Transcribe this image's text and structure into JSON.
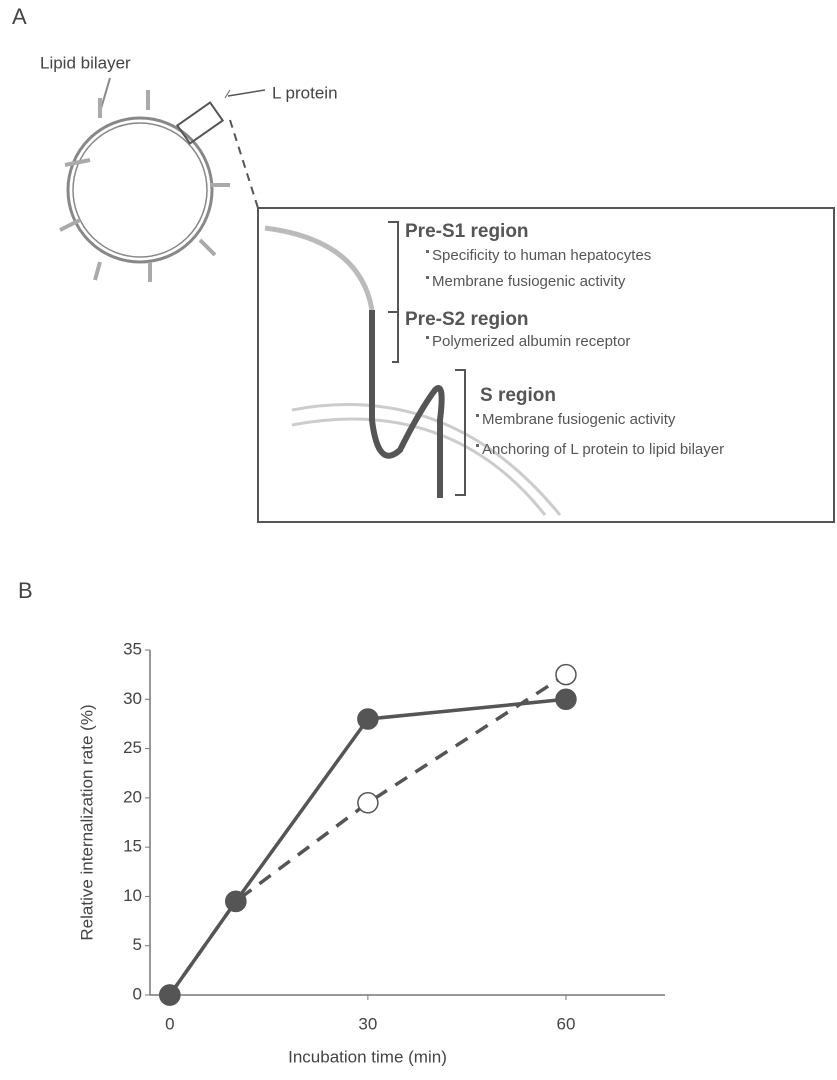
{
  "panel_a": {
    "label": "A",
    "lipid_label": "Lipid bilayer",
    "protein_label": "L protein",
    "regions": [
      {
        "name": "Pre-S1 region",
        "items": [
          "Specificity to human hepatocytes",
          "Membrane fusiogenic activity"
        ]
      },
      {
        "name": "Pre-S2 region",
        "items": [
          "Polymerized albumin receptor"
        ]
      },
      {
        "name": "S region",
        "items": [
          "Membrane fusiogenic activity",
          "Anchoring of L protein to lipid bilayer"
        ]
      }
    ]
  },
  "panel_b": {
    "label": "B"
  },
  "chart_data": {
    "type": "line",
    "x_label": "Incubation time (min)",
    "y_label": "Relative internalization rate (%)",
    "x": [
      0,
      10,
      30,
      60
    ],
    "series": [
      {
        "color": "#555555",
        "line_style": "solid",
        "marker": "filled",
        "values": [
          0,
          9.5,
          28,
          30
        ]
      },
      {
        "color": "#555555",
        "line_style": "dashed",
        "marker": "open",
        "values": [
          0,
          9.5,
          19.5,
          32.5
        ]
      }
    ],
    "xlim": [
      -3,
      75
    ],
    "xticks": [
      0,
      30,
      60
    ],
    "ylim": [
      0,
      35
    ],
    "yticks": [
      0,
      5,
      10,
      15,
      20,
      25,
      30,
      35
    ]
  }
}
